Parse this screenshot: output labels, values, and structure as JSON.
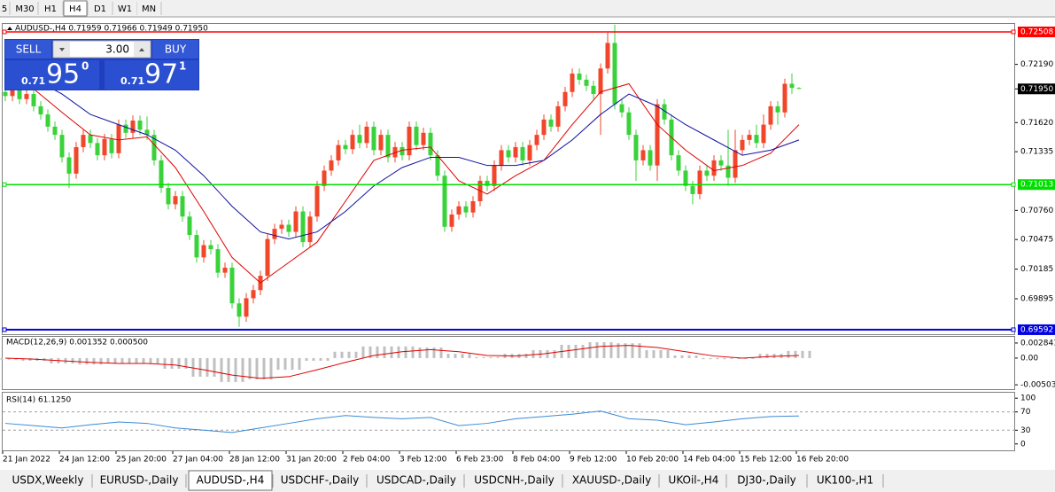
{
  "toolbar": {
    "timeframes": [
      "5",
      "M30",
      "H1",
      "H4",
      "D1",
      "W1",
      "MN"
    ],
    "active": 3
  },
  "trade_panel": {
    "sell": "SELL",
    "buy": "BUY",
    "lot": "3.00",
    "sell_price": {
      "prefix": "0.71",
      "big": "95",
      "sup": "0"
    },
    "buy_price": {
      "prefix": "0.71",
      "big": "97",
      "sup": "1"
    }
  },
  "chart_data": [
    {
      "type": "candlestick",
      "title": "AUDUSD-,H4  0.71959 0.71966 0.71949 0.71950",
      "up_color": "#f2462a",
      "down_color": "#3ad23a",
      "ylim": [
        0.69548,
        0.72586
      ],
      "yticks": [
        {
          "value": 0.7219,
          "label": "0.72190"
        },
        {
          "value": 0.7162,
          "label": "0.71620"
        },
        {
          "value": 0.71335,
          "label": "0.71335"
        },
        {
          "value": 0.7076,
          "label": "0.70760"
        },
        {
          "value": 0.70475,
          "label": "0.70475"
        },
        {
          "value": 0.70185,
          "label": "0.70185"
        },
        {
          "value": 0.69895,
          "label": "0.69895"
        }
      ],
      "hlines": [
        {
          "value": 0.72508,
          "color": "#ff0000"
        },
        {
          "value": 0.71013,
          "color": "#00e000"
        },
        {
          "value": 0.69592,
          "color": "#0000e0"
        }
      ],
      "current_price": {
        "value": 0.7195,
        "label": "0.71950"
      },
      "x_labels": [
        "21 Jan 2022",
        "24 Jan 12:00",
        "25 Jan 20:00",
        "27 Jan 04:00",
        "28 Jan 12:00",
        "31 Jan 20:00",
        "2 Feb 04:00",
        "3 Feb 12:00",
        "6 Feb 23:00",
        "8 Feb 04:00",
        "9 Feb 12:00",
        "10 Feb 20:00",
        "14 Feb 04:00",
        "15 Feb 12:00",
        "16 Feb 20:00"
      ],
      "candles": [
        [
          0.7192,
          0.7197,
          0.7183,
          0.7188
        ],
        [
          0.7188,
          0.7199,
          0.7183,
          0.7194
        ],
        [
          0.7194,
          0.7199,
          0.718,
          0.7185
        ],
        [
          0.7185,
          0.7195,
          0.718,
          0.719
        ],
        [
          0.719,
          0.7195,
          0.7173,
          0.7178
        ],
        [
          0.7178,
          0.7183,
          0.7165,
          0.717
        ],
        [
          0.717,
          0.7175,
          0.7153,
          0.7158
        ],
        [
          0.7158,
          0.7163,
          0.7145,
          0.715
        ],
        [
          0.715,
          0.7155,
          0.7123,
          0.7128
        ],
        [
          0.7128,
          0.7133,
          0.7098,
          0.7112
        ],
        [
          0.7112,
          0.7143,
          0.7107,
          0.7138
        ],
        [
          0.7138,
          0.7155,
          0.7133,
          0.715
        ],
        [
          0.715,
          0.7155,
          0.7137,
          0.7142
        ],
        [
          0.7142,
          0.7147,
          0.7125,
          0.713
        ],
        [
          0.713,
          0.7151,
          0.7125,
          0.7146
        ],
        [
          0.7146,
          0.7151,
          0.7127,
          0.7132
        ],
        [
          0.7132,
          0.7165,
          0.7127,
          0.716
        ],
        [
          0.716,
          0.7165,
          0.7147,
          0.7152
        ],
        [
          0.7152,
          0.7169,
          0.7147,
          0.7164
        ],
        [
          0.7164,
          0.7169,
          0.715,
          0.7155
        ],
        [
          0.7155,
          0.7168,
          0.7145,
          0.715
        ],
        [
          0.715,
          0.7155,
          0.712,
          0.7125
        ],
        [
          0.7125,
          0.713,
          0.7093,
          0.7098
        ],
        [
          0.7098,
          0.7103,
          0.7077,
          0.7082
        ],
        [
          0.7082,
          0.7095,
          0.7077,
          0.709
        ],
        [
          0.709,
          0.7095,
          0.7065,
          0.707
        ],
        [
          0.707,
          0.7075,
          0.7047,
          0.7052
        ],
        [
          0.7052,
          0.7057,
          0.7025,
          0.703
        ],
        [
          0.703,
          0.7047,
          0.7025,
          0.7042
        ],
        [
          0.7042,
          0.7047,
          0.7033,
          0.7038
        ],
        [
          0.7038,
          0.7043,
          0.701,
          0.7015
        ],
        [
          0.7015,
          0.7025,
          0.701,
          0.702
        ],
        [
          0.702,
          0.7025,
          0.698,
          0.6985
        ],
        [
          0.6985,
          0.699,
          0.6962,
          0.6972
        ],
        [
          0.6972,
          0.6995,
          0.6967,
          0.699
        ],
        [
          0.699,
          0.7003,
          0.6985,
          0.6998
        ],
        [
          0.6998,
          0.7017,
          0.6993,
          0.7012
        ],
        [
          0.7012,
          0.7053,
          0.7007,
          0.7048
        ],
        [
          0.7048,
          0.7063,
          0.7043,
          0.7058
        ],
        [
          0.7058,
          0.7067,
          0.7053,
          0.7062
        ],
        [
          0.7062,
          0.7067,
          0.705,
          0.7055
        ],
        [
          0.7055,
          0.708,
          0.705,
          0.7075
        ],
        [
          0.7075,
          0.708,
          0.704,
          0.7045
        ],
        [
          0.7045,
          0.7075,
          0.704,
          0.707
        ],
        [
          0.707,
          0.7105,
          0.7065,
          0.71
        ],
        [
          0.71,
          0.712,
          0.7095,
          0.7115
        ],
        [
          0.7115,
          0.713,
          0.711,
          0.7125
        ],
        [
          0.7125,
          0.7145,
          0.712,
          0.714
        ],
        [
          0.714,
          0.7145,
          0.7131,
          0.7136
        ],
        [
          0.7136,
          0.7155,
          0.7131,
          0.715
        ],
        [
          0.715,
          0.716,
          0.7137,
          0.7142
        ],
        [
          0.7142,
          0.7163,
          0.7137,
          0.7158
        ],
        [
          0.7158,
          0.7163,
          0.713,
          0.7135
        ],
        [
          0.7135,
          0.7155,
          0.713,
          0.715
        ],
        [
          0.715,
          0.7155,
          0.7123,
          0.7128
        ],
        [
          0.7128,
          0.7143,
          0.7123,
          0.7138
        ],
        [
          0.7138,
          0.7143,
          0.7125,
          0.713
        ],
        [
          0.713,
          0.7163,
          0.7125,
          0.7158
        ],
        [
          0.7158,
          0.7163,
          0.7135,
          0.714
        ],
        [
          0.714,
          0.7157,
          0.7135,
          0.7152
        ],
        [
          0.7152,
          0.7157,
          0.7125,
          0.713
        ],
        [
          0.713,
          0.7135,
          0.7105,
          0.711
        ],
        [
          0.711,
          0.7115,
          0.7055,
          0.706
        ],
        [
          0.706,
          0.7077,
          0.7055,
          0.7072
        ],
        [
          0.7072,
          0.7085,
          0.7067,
          0.708
        ],
        [
          0.708,
          0.7085,
          0.7069,
          0.7074
        ],
        [
          0.7074,
          0.709,
          0.7069,
          0.7085
        ],
        [
          0.7085,
          0.711,
          0.708,
          0.7105
        ],
        [
          0.7105,
          0.711,
          0.7095,
          0.71
        ],
        [
          0.71,
          0.7125,
          0.7095,
          0.712
        ],
        [
          0.712,
          0.714,
          0.7115,
          0.7135
        ],
        [
          0.7135,
          0.714,
          0.7123,
          0.7128
        ],
        [
          0.7128,
          0.7143,
          0.7123,
          0.7138
        ],
        [
          0.7138,
          0.7143,
          0.712,
          0.7125
        ],
        [
          0.7125,
          0.7145,
          0.712,
          0.714
        ],
        [
          0.714,
          0.7155,
          0.7135,
          0.715
        ],
        [
          0.715,
          0.717,
          0.7145,
          0.7165
        ],
        [
          0.7165,
          0.717,
          0.7153,
          0.7158
        ],
        [
          0.7158,
          0.7183,
          0.7153,
          0.7178
        ],
        [
          0.7178,
          0.7197,
          0.7173,
          0.7192
        ],
        [
          0.7192,
          0.7215,
          0.7187,
          0.721
        ],
        [
          0.721,
          0.7215,
          0.7199,
          0.7204
        ],
        [
          0.7204,
          0.7209,
          0.7193,
          0.7198
        ],
        [
          0.7198,
          0.7203,
          0.7185,
          0.719
        ],
        [
          0.719,
          0.722,
          0.715,
          0.7215
        ],
        [
          0.7215,
          0.725,
          0.721,
          0.724
        ],
        [
          0.724,
          0.7258,
          0.7175,
          0.718
        ],
        [
          0.718,
          0.7185,
          0.7167,
          0.7172
        ],
        [
          0.7172,
          0.7177,
          0.7145,
          0.715
        ],
        [
          0.715,
          0.7155,
          0.7105,
          0.7125
        ],
        [
          0.7125,
          0.714,
          0.712,
          0.7135
        ],
        [
          0.7135,
          0.714,
          0.7115,
          0.712
        ],
        [
          0.712,
          0.7185,
          0.7105,
          0.718
        ],
        [
          0.718,
          0.7185,
          0.716,
          0.7165
        ],
        [
          0.7165,
          0.717,
          0.7125,
          0.713
        ],
        [
          0.713,
          0.7135,
          0.711,
          0.7115
        ],
        [
          0.7115,
          0.712,
          0.7095,
          0.71
        ],
        [
          0.71,
          0.7105,
          0.7082,
          0.7092
        ],
        [
          0.7092,
          0.712,
          0.7087,
          0.7115
        ],
        [
          0.7115,
          0.712,
          0.7105,
          0.711
        ],
        [
          0.711,
          0.713,
          0.7105,
          0.7125
        ],
        [
          0.7125,
          0.713,
          0.7115,
          0.712
        ],
        [
          0.712,
          0.7155,
          0.71,
          0.7108
        ],
        [
          0.7108,
          0.7155,
          0.7103,
          0.7135
        ],
        [
          0.7135,
          0.715,
          0.713,
          0.7145
        ],
        [
          0.7145,
          0.7155,
          0.714,
          0.715
        ],
        [
          0.715,
          0.716,
          0.7137,
          0.7142
        ],
        [
          0.7142,
          0.717,
          0.7137,
          0.716
        ],
        [
          0.716,
          0.7183,
          0.7155,
          0.7178
        ],
        [
          0.7178,
          0.7183,
          0.716,
          0.7172
        ],
        [
          0.7172,
          0.7205,
          0.7167,
          0.72
        ],
        [
          0.72,
          0.721,
          0.719,
          0.7196
        ],
        [
          0.71959,
          0.71966,
          0.71949,
          0.7195
        ]
      ],
      "ma": [
        {
          "color": "#e00000",
          "x": [
            0,
            4,
            8,
            12,
            16,
            20,
            24,
            28,
            32,
            36,
            40,
            44,
            48,
            52,
            56,
            60,
            64,
            68,
            72,
            76,
            80,
            84,
            88,
            92,
            96,
            100,
            104,
            108,
            112
          ],
          "values": [
            0.721,
            0.7195,
            0.7172,
            0.715,
            0.7145,
            0.7148,
            0.7118,
            0.7075,
            0.703,
            0.7005,
            0.7025,
            0.7045,
            0.7085,
            0.7125,
            0.7135,
            0.7138,
            0.7105,
            0.7092,
            0.711,
            0.7125,
            0.716,
            0.7192,
            0.72,
            0.716,
            0.7135,
            0.7115,
            0.712,
            0.7132,
            0.716
          ]
        },
        {
          "color": "#1010a0",
          "x": [
            0,
            4,
            8,
            12,
            16,
            20,
            24,
            28,
            32,
            36,
            40,
            44,
            48,
            52,
            56,
            60,
            64,
            68,
            72,
            76,
            80,
            84,
            88,
            92,
            96,
            100,
            104,
            108,
            112
          ],
          "values": [
            0.7215,
            0.7205,
            0.719,
            0.717,
            0.716,
            0.715,
            0.7135,
            0.711,
            0.708,
            0.7055,
            0.7048,
            0.7055,
            0.7075,
            0.71,
            0.7118,
            0.7128,
            0.7128,
            0.712,
            0.712,
            0.7125,
            0.7145,
            0.717,
            0.719,
            0.7178,
            0.716,
            0.7145,
            0.713,
            0.7135,
            0.7145
          ]
        }
      ]
    },
    {
      "type": "macd",
      "title": "MACD(12,26,9) 0.001352 0.000500",
      "ylim": [
        -0.00585,
        0.004
      ],
      "yticks": [
        0.002841,
        {
          "value": 0,
          "label": "0.00"
        },
        -0.005032
      ],
      "x": [
        0,
        4,
        8,
        12,
        16,
        20,
        24,
        28,
        32,
        36,
        40,
        44,
        48,
        52,
        56,
        60,
        64,
        68,
        72,
        76,
        80,
        84,
        88,
        92,
        96,
        100,
        104,
        108,
        112
      ],
      "series": [
        {
          "color": "#c0c0c0",
          "values": [
            -0.0003,
            -0.0005,
            -0.001,
            -0.0012,
            -0.001,
            -0.001,
            -0.002,
            -0.0035,
            -0.0045,
            -0.004,
            -0.0022,
            -0.0005,
            0.0012,
            0.0022,
            0.0022,
            0.002,
            0.0008,
            0.0002,
            0.0008,
            0.0015,
            0.0025,
            0.003,
            0.0028,
            0.0015,
            0.0005,
            -0.0002,
            0,
            0.0008,
            0.001352
          ]
        },
        {
          "color": "#e00000",
          "values": [
            0,
            -0.0002,
            -0.0005,
            -0.0008,
            -0.001,
            -0.001,
            -0.0013,
            -0.0022,
            -0.0032,
            -0.0038,
            -0.0035,
            -0.0022,
            -0.0008,
            0.0005,
            0.0012,
            0.0016,
            0.0012,
            0.0005,
            0.0004,
            0.0008,
            0.0015,
            0.0022,
            0.0024,
            0.002,
            0.0012,
            0.0004,
            0,
            0.0003,
            0.0005
          ]
        }
      ]
    },
    {
      "type": "line",
      "title": "RSI(14) 61.1250",
      "ylim": [
        -14,
        112
      ],
      "yticks": [
        100,
        70,
        30,
        0
      ],
      "levels": [
        70,
        30
      ],
      "x": [
        0,
        4,
        8,
        12,
        16,
        20,
        24,
        28,
        32,
        36,
        40,
        44,
        48,
        52,
        56,
        60,
        64,
        68,
        72,
        76,
        80,
        84,
        88,
        92,
        96,
        100,
        104,
        108,
        112
      ],
      "series": [
        {
          "color": "#3a8ad6",
          "values": [
            45,
            40,
            35,
            42,
            48,
            45,
            35,
            30,
            25,
            35,
            45,
            55,
            62,
            58,
            55,
            58,
            40,
            45,
            55,
            60,
            65,
            72,
            55,
            52,
            42,
            48,
            55,
            60,
            61.125
          ]
        }
      ]
    }
  ],
  "tabs": {
    "items": [
      "USDX,Weekly",
      "EURUSD-,Daily",
      "AUDUSD-,H4",
      "USDCHF-,Daily",
      "USDCAD-,Daily",
      "USDCNH-,Daily",
      "XAUUSD-,Daily",
      "UKOil-,H4",
      "DJ30-,Daily",
      "UK100-,H1"
    ],
    "active": 2
  }
}
